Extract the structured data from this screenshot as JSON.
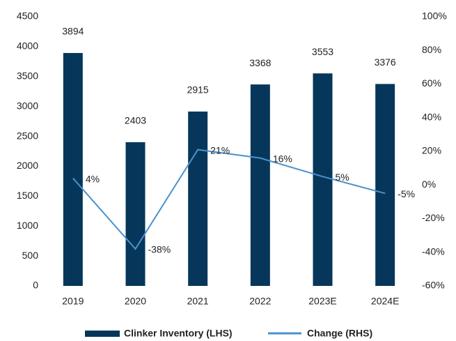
{
  "chart_data": {
    "type": "combo",
    "categories": [
      "2019",
      "2020",
      "2021",
      "2022",
      "2023E",
      "2024E"
    ],
    "series": [
      {
        "name": "Clinker Inventory  (LHS)",
        "type": "bar",
        "color": "#06375a",
        "values": [
          3894,
          2403,
          2915,
          3368,
          3553,
          3376
        ]
      },
      {
        "name": "Change (RHS)",
        "type": "line",
        "axis": "y2",
        "color": "#4a92cc",
        "values": [
          4,
          -38,
          21,
          16,
          5,
          -5
        ],
        "value_labels": [
          "4%",
          "-38%",
          "21%",
          "16%",
          "5%",
          "-5%"
        ]
      }
    ],
    "ylim": [
      0,
      4500
    ],
    "yticks": [
      0,
      500,
      1000,
      1500,
      2000,
      2500,
      3000,
      3500,
      4000,
      4500
    ],
    "y2lim": [
      -60,
      100
    ],
    "y2ticks": [
      {
        "value": -60,
        "label": "-60%"
      },
      {
        "value": -40,
        "label": "-40%"
      },
      {
        "value": -20,
        "label": "-20%"
      },
      {
        "value": 0,
        "label": "0%"
      },
      {
        "value": 20,
        "label": "20%"
      },
      {
        "value": 40,
        "label": "40%"
      },
      {
        "value": 60,
        "label": "60%"
      },
      {
        "value": 80,
        "label": "80%"
      },
      {
        "value": 100,
        "label": "100%"
      }
    ],
    "grid": false,
    "legend": "bottom"
  }
}
